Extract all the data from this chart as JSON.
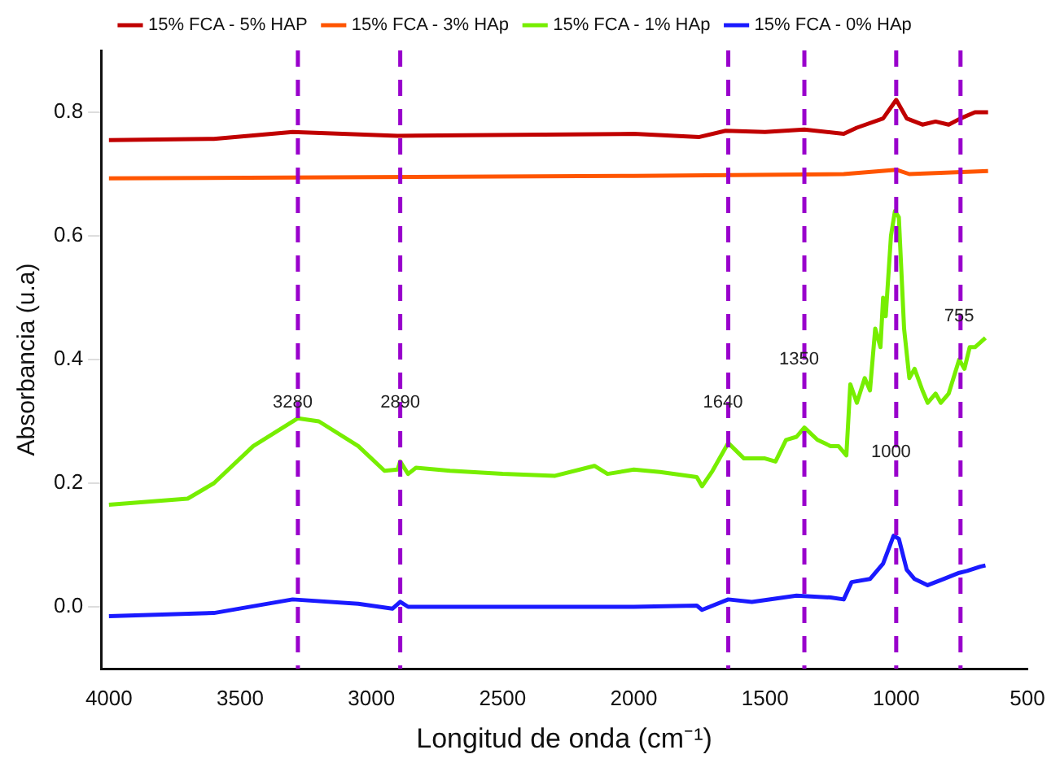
{
  "chart_data": {
    "type": "line",
    "xlabel": "Longitud de onda (cm⁻¹)",
    "ylabel": "Absorbancia (u.a)",
    "xlim": [
      4030,
      500
    ],
    "xticks": [
      4000,
      3500,
      3000,
      2500,
      2000,
      1500,
      1000,
      500
    ],
    "ylim": [
      -0.1,
      0.9
    ],
    "yticks": [
      {
        "value": 0,
        "label": "0.0"
      },
      0.2,
      0.4,
      0.6,
      0.8
    ],
    "grid": false,
    "legend": "top",
    "marker": "none",
    "line_style": "solid",
    "series": [
      {
        "name": "15% FCA - 5% HAP",
        "color": "#c00000",
        "x": [
          4000,
          3600,
          3300,
          2900,
          2000,
          1750,
          1650,
          1500,
          1350,
          1200,
          1150,
          1050,
          1000,
          960,
          900,
          850,
          800,
          755,
          700,
          650
        ],
        "values": [
          0.755,
          0.757,
          0.768,
          0.762,
          0.765,
          0.76,
          0.77,
          0.768,
          0.772,
          0.765,
          0.775,
          0.79,
          0.82,
          0.79,
          0.78,
          0.785,
          0.78,
          0.79,
          0.8,
          0.8
        ]
      },
      {
        "name": "15% FCA - 3% HAp",
        "color": "#ff5500",
        "x": [
          4000,
          3000,
          2000,
          1200,
          1000,
          950,
          650
        ],
        "values": [
          0.693,
          0.695,
          0.697,
          0.7,
          0.707,
          0.7,
          0.705
        ]
      },
      {
        "name": "15% FCA - 1% HAp",
        "color": "#77ee00",
        "x": [
          4000,
          3700,
          3600,
          3450,
          3280,
          3200,
          3050,
          2950,
          2900,
          2890,
          2860,
          2830,
          2700,
          2500,
          2300,
          2150,
          2100,
          2000,
          1900,
          1760,
          1740,
          1700,
          1640,
          1580,
          1500,
          1460,
          1420,
          1380,
          1350,
          1300,
          1250,
          1220,
          1190,
          1175,
          1150,
          1120,
          1100,
          1080,
          1060,
          1050,
          1040,
          1020,
          1005,
          990,
          970,
          950,
          930,
          900,
          880,
          850,
          830,
          800,
          760,
          740,
          720,
          700,
          660
        ],
        "values": [
          0.165,
          0.175,
          0.2,
          0.26,
          0.305,
          0.3,
          0.26,
          0.22,
          0.222,
          0.235,
          0.215,
          0.225,
          0.22,
          0.215,
          0.212,
          0.228,
          0.215,
          0.222,
          0.218,
          0.21,
          0.195,
          0.22,
          0.265,
          0.24,
          0.24,
          0.235,
          0.27,
          0.275,
          0.29,
          0.27,
          0.26,
          0.26,
          0.245,
          0.36,
          0.33,
          0.37,
          0.35,
          0.45,
          0.42,
          0.5,
          0.47,
          0.6,
          0.64,
          0.63,
          0.45,
          0.37,
          0.385,
          0.35,
          0.33,
          0.345,
          0.33,
          0.345,
          0.4,
          0.385,
          0.42,
          0.42,
          0.435
        ]
      },
      {
        "name": "15% FCA - 0% HAp",
        "color": "#1a1aff",
        "x": [
          4000,
          3600,
          3300,
          3050,
          2920,
          2890,
          2860,
          2500,
          2000,
          1760,
          1740,
          1640,
          1550,
          1380,
          1250,
          1200,
          1170,
          1100,
          1050,
          1010,
          990,
          960,
          930,
          880,
          820,
          760,
          730,
          680,
          660
        ],
        "values": [
          -0.015,
          -0.01,
          0.012,
          0.005,
          -0.003,
          0.008,
          0.0,
          0.0,
          0.0,
          0.002,
          -0.005,
          0.012,
          0.008,
          0.018,
          0.015,
          0.012,
          0.04,
          0.045,
          0.07,
          0.115,
          0.11,
          0.06,
          0.045,
          0.035,
          0.045,
          0.055,
          0.058,
          0.065,
          0.067
        ]
      }
    ],
    "ref_lines": [
      {
        "axis": "x",
        "value": 3280,
        "color": "#9900cc",
        "line_style": "dashed"
      },
      {
        "axis": "x",
        "value": 2890,
        "color": "#9900cc",
        "line_style": "dashed"
      },
      {
        "axis": "x",
        "value": 1640,
        "color": "#9900cc",
        "line_style": "dashed"
      },
      {
        "axis": "x",
        "value": 1350,
        "color": "#9900cc",
        "line_style": "dashed"
      },
      {
        "axis": "x",
        "value": 1000,
        "color": "#9900cc",
        "line_style": "dashed"
      },
      {
        "axis": "x",
        "value": 755,
        "color": "#9900cc",
        "line_style": "dashed"
      }
    ],
    "annotations": [
      {
        "text": "3280",
        "x": 3300,
        "y": 0.33
      },
      {
        "text": "2890",
        "x": 2890,
        "y": 0.33
      },
      {
        "text": "1640",
        "x": 1660,
        "y": 0.33
      },
      {
        "text": "1350",
        "x": 1370,
        "y": 0.4
      },
      {
        "text": "1000",
        "x": 1020,
        "y": 0.25
      },
      {
        "text": "755",
        "x": 760,
        "y": 0.47
      }
    ]
  }
}
